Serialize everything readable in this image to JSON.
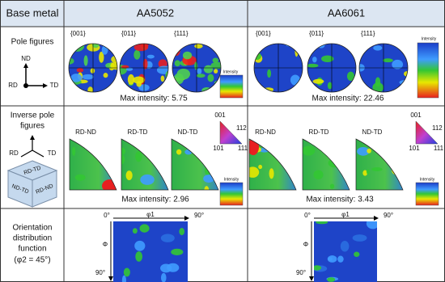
{
  "header": {
    "corner": "Base metal",
    "samples": [
      "AA5052",
      "AA6061"
    ]
  },
  "pole_figures": {
    "label": "Pole figures",
    "axes": {
      "nd": "ND",
      "rd": "RD",
      "td": "TD"
    },
    "planes": [
      "{001}",
      "{011}",
      "{111}"
    ],
    "legend": "Intensity",
    "captions": [
      "Max intensity: 5.75",
      "Max intensity: 22.46"
    ]
  },
  "inverse_pole_figures": {
    "label": [
      "Inverse pole",
      "figures"
    ],
    "axes": {
      "rd": "RD",
      "td": "TD"
    },
    "cube_faces": [
      "RD-TD",
      "ND-TD",
      "RD-ND"
    ],
    "sections": [
      "RD-ND",
      "RD-TD",
      "ND-TD"
    ],
    "key": [
      "001",
      "112",
      "101",
      "111"
    ],
    "legend": "Intensity",
    "captions": [
      "Max intensity: 2.96",
      "Max intensity: 3.43"
    ]
  },
  "odf": {
    "label": [
      "Orientation",
      "distribution",
      "function",
      "(φ2 = 45°)"
    ],
    "axis": {
      "origin": "0°",
      "phi1": "φ1",
      "phi1_end": "90°",
      "Phi": "Φ",
      "Phi_end": "90°"
    }
  }
}
